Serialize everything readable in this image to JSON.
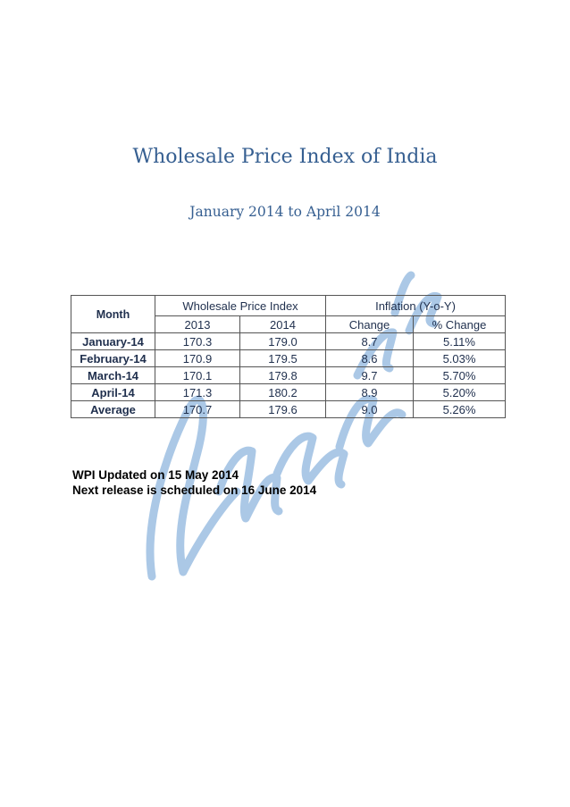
{
  "document": {
    "title": "Wholesale Price Index of India",
    "subtitle": "January 2014 to April 2014",
    "watermark_text": "Dhanya Varma's"
  },
  "table": {
    "header": {
      "month": "Month",
      "wpi_group": "Wholesale Price Index",
      "inflation_group": "Inflation (Y-o-Y)",
      "year_a": "2013",
      "year_b": "2014",
      "change": "Change",
      "pct_change": "% Change"
    },
    "rows": [
      {
        "month": "January-14",
        "wpi_2013": "170.3",
        "wpi_2014": "179.0",
        "change": "8.7",
        "pct_change": "5.11%"
      },
      {
        "month": "February-14",
        "wpi_2013": "170.9",
        "wpi_2014": "179.5",
        "change": "8.6",
        "pct_change": "5.03%"
      },
      {
        "month": "March-14",
        "wpi_2013": "170.1",
        "wpi_2014": "179.8",
        "change": "9.7",
        "pct_change": "5.70%"
      },
      {
        "month": "April-14",
        "wpi_2013": "171.3",
        "wpi_2014": "180.2",
        "change": "8.9",
        "pct_change": "5.20%"
      },
      {
        "month": "Average",
        "wpi_2013": "170.7",
        "wpi_2014": "179.6",
        "change": "9.0",
        "pct_change": "5.26%"
      }
    ]
  },
  "notes": {
    "updated": "WPI Updated on 15 May 2014",
    "next_release": "Next release is scheduled on 16 June 2014"
  },
  "colors": {
    "heading": "#365f91",
    "table_text": "#1f2f4d",
    "watermark": "#8fb6de"
  }
}
